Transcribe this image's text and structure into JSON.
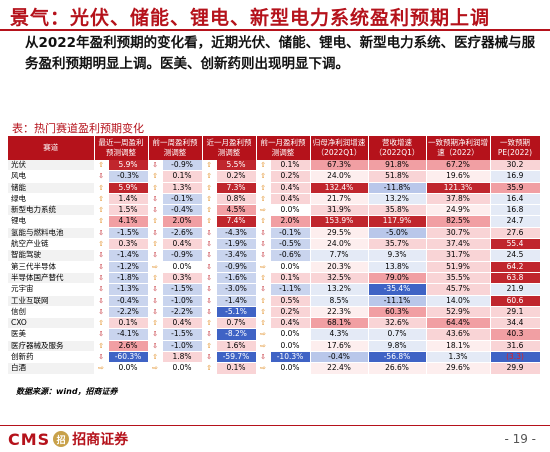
{
  "header": {
    "title": "景气：光伏、储能、锂电、新型电力系统盈利预期上调",
    "summary": "从2022年盈利预期的变化看，近期光伏、储能、锂电、新型电力系统、医疗器械与服务盈利预期明显上调。医美、创新药则出现明显下调。"
  },
  "table": {
    "caption": "表：热门赛道盈利预期变化",
    "columns": [
      "赛道",
      "最近一周盈利预测调整",
      "前一周盈利预测调整",
      "近一月盈利预测调整",
      "前一月盈利预测调整",
      "归母净利润增速（2022Q1）",
      "营收增速（2022Q1）",
      "一致预期净利润增速（2022）",
      "一致预期PE(2022)"
    ],
    "rows": [
      {
        "name": "光伏",
        "w1": "5.9%",
        "w1d": "up",
        "w2": "-0.9%",
        "w2d": "down",
        "m1": "5.5%",
        "m1d": "up",
        "m2": "0.1%",
        "m2d": "up",
        "np": "67.3%",
        "rev": "91.8%",
        "fn": "67.2%",
        "pe": "30.2"
      },
      {
        "name": "风电",
        "w1": "-0.3%",
        "w1d": "down",
        "w2": "0.1%",
        "w2d": "up",
        "m1": "0.2%",
        "m1d": "up",
        "m2": "0.2%",
        "m2d": "up",
        "np": "24.0%",
        "rev": "51.8%",
        "fn": "19.6%",
        "pe": "16.9"
      },
      {
        "name": "储能",
        "w1": "5.9%",
        "w1d": "up",
        "w2": "1.3%",
        "w2d": "up",
        "m1": "7.3%",
        "m1d": "up",
        "m2": "0.4%",
        "m2d": "up",
        "np": "132.4%",
        "rev": "-11.8%",
        "fn": "121.3%",
        "pe": "35.9"
      },
      {
        "name": "绿电",
        "w1": "1.4%",
        "w1d": "up",
        "w2": "-0.1%",
        "w2d": "down",
        "m1": "0.8%",
        "m1d": "up",
        "m2": "0.4%",
        "m2d": "up",
        "np": "21.7%",
        "rev": "13.2%",
        "fn": "37.8%",
        "pe": "16.4"
      },
      {
        "name": "新型电力系统",
        "w1": "1.5%",
        "w1d": "up",
        "w2": "-0.4%",
        "w2d": "down",
        "m1": "4.5%",
        "m1d": "up",
        "m2": "0.0%",
        "m2d": "flat",
        "np": "31.9%",
        "rev": "35.8%",
        "fn": "24.9%",
        "pe": "16.8"
      },
      {
        "name": "锂电",
        "w1": "4.1%",
        "w1d": "up",
        "w2": "2.0%",
        "w2d": "up",
        "m1": "7.4%",
        "m1d": "up",
        "m2": "2.0%",
        "m2d": "up",
        "np": "153.9%",
        "rev": "117.9%",
        "fn": "82.5%",
        "pe": "24.7"
      },
      {
        "name": "氢能与燃料电池",
        "w1": "-1.5%",
        "w1d": "down",
        "w2": "-2.6%",
        "w2d": "down",
        "m1": "-4.3%",
        "m1d": "down",
        "m2": "-0.1%",
        "m2d": "down",
        "np": "29.5%",
        "rev": "-5.0%",
        "fn": "30.7%",
        "pe": "27.6"
      },
      {
        "name": "航空产业链",
        "w1": "0.3%",
        "w1d": "up",
        "w2": "0.4%",
        "w2d": "up",
        "m1": "-1.9%",
        "m1d": "down",
        "m2": "-0.5%",
        "m2d": "down",
        "np": "24.0%",
        "rev": "35.7%",
        "fn": "37.4%",
        "pe": "55.4"
      },
      {
        "name": "智能驾驶",
        "w1": "-1.4%",
        "w1d": "down",
        "w2": "-0.9%",
        "w2d": "down",
        "m1": "-3.4%",
        "m1d": "down",
        "m2": "-0.6%",
        "m2d": "down",
        "np": "7.7%",
        "rev": "9.3%",
        "fn": "31.7%",
        "pe": "24.5"
      },
      {
        "name": "第三代半导体",
        "w1": "-1.2%",
        "w1d": "down",
        "w2": "0.0%",
        "w2d": "flat",
        "m1": "-0.9%",
        "m1d": "down",
        "m2": "0.0%",
        "m2d": "flat",
        "np": "20.3%",
        "rev": "13.8%",
        "fn": "51.9%",
        "pe": "64.2"
      },
      {
        "name": "半导体国产替代",
        "w1": "-1.8%",
        "w1d": "down",
        "w2": "0.3%",
        "w2d": "up",
        "m1": "-1.6%",
        "m1d": "down",
        "m2": "0.1%",
        "m2d": "up",
        "np": "32.5%",
        "rev": "79.0%",
        "fn": "35.5%",
        "pe": "63.8"
      },
      {
        "name": "元宇宙",
        "w1": "-1.3%",
        "w1d": "down",
        "w2": "-1.5%",
        "w2d": "down",
        "m1": "-3.0%",
        "m1d": "down",
        "m2": "-1.1%",
        "m2d": "down",
        "np": "13.2%",
        "rev": "-35.4%",
        "fn": "45.7%",
        "pe": "21.9"
      },
      {
        "name": "工业互联网",
        "w1": "-0.4%",
        "w1d": "down",
        "w2": "-1.0%",
        "w2d": "down",
        "m1": "-1.4%",
        "m1d": "down",
        "m2": "0.5%",
        "m2d": "up",
        "np": "8.5%",
        "rev": "-11.1%",
        "fn": "14.0%",
        "pe": "60.6"
      },
      {
        "name": "信创",
        "w1": "-2.2%",
        "w1d": "down",
        "w2": "-2.2%",
        "w2d": "down",
        "m1": "-5.1%",
        "m1d": "down",
        "m2": "0.2%",
        "m2d": "up",
        "np": "22.3%",
        "rev": "60.3%",
        "fn": "52.9%",
        "pe": "29.1"
      },
      {
        "name": "CXO",
        "w1": "0.1%",
        "w1d": "up",
        "w2": "0.4%",
        "w2d": "up",
        "m1": "0.7%",
        "m1d": "up",
        "m2": "0.4%",
        "m2d": "up",
        "np": "68.1%",
        "rev": "32.6%",
        "fn": "64.4%",
        "pe": "34.4"
      },
      {
        "name": "医美",
        "w1": "-4.1%",
        "w1d": "down",
        "w2": "-1.5%",
        "w2d": "down",
        "m1": "-8.2%",
        "m1d": "down",
        "m2": "0.0%",
        "m2d": "flat",
        "np": "4.3%",
        "rev": "0.7%",
        "fn": "43.6%",
        "pe": "40.3"
      },
      {
        "name": "医疗器械及服务",
        "w1": "2.6%",
        "w1d": "up",
        "w2": "-1.0%",
        "w2d": "down",
        "m1": "1.6%",
        "m1d": "up",
        "m2": "0.0%",
        "m2d": "flat",
        "np": "17.6%",
        "rev": "9.8%",
        "fn": "18.1%",
        "pe": "31.6"
      },
      {
        "name": "创新药",
        "w1": "-60.3%",
        "w1d": "down",
        "w2": "1.8%",
        "w2d": "up",
        "m1": "-59.7%",
        "m1d": "down",
        "m2": "-10.3%",
        "m2d": "down",
        "np": "-0.4%",
        "rev": "-56.8%",
        "fn": "1.3%",
        "pe": "(3.3)"
      },
      {
        "name": "白酒",
        "w1": "0.0%",
        "w1d": "flat",
        "w2": "0.0%",
        "w2d": "flat",
        "m1": "0.1%",
        "m1d": "up",
        "m2": "0.0%",
        "m2d": "flat",
        "np": "22.4%",
        "rev": "26.6%",
        "fn": "29.6%",
        "pe": "29.9"
      }
    ]
  },
  "source": "数据来源：wind，招商证券",
  "footer": {
    "logo_text": "CMS",
    "seal_text": "招",
    "logo_cn": "招商证券",
    "page": "- 19 -"
  },
  "colors": {
    "brand_red": "#b5121b",
    "up_arrow": "#e08a1e",
    "down_arrow": "#c0262d",
    "pos_fill": "#f4a6aa",
    "neg_fill": "#dfe6f4",
    "blue_strong": "#3f63c5",
    "red_strong": "#c0262d"
  }
}
